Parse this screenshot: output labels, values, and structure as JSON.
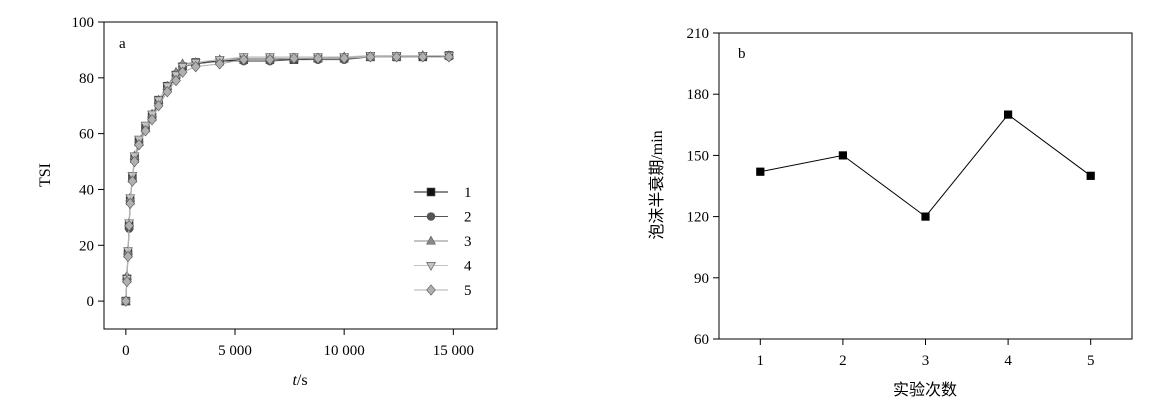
{
  "chart_data": [
    {
      "panel": "a",
      "type": "line",
      "xlabel_italic": "t",
      "xlabel_unit": "/s",
      "ylabel": "TSI",
      "xlim": [
        -1000,
        17000
      ],
      "ylim": [
        -10,
        100
      ],
      "x_ticks": [
        0,
        5000,
        10000,
        15000
      ],
      "x_tick_labels": [
        "0",
        "5 000",
        "10 000",
        "15 000"
      ],
      "y_ticks": [
        0,
        20,
        40,
        60,
        80,
        100
      ],
      "y_tick_labels": [
        "0",
        "20",
        "40",
        "60",
        "80",
        "100"
      ],
      "legend_position": "lower-right",
      "series": [
        {
          "name": "1",
          "marker": "square",
          "color": "#111111",
          "x": [
            0,
            50,
            100,
            150,
            200,
            300,
            400,
            600,
            900,
            1200,
            1500,
            1900,
            2300,
            2600,
            3200,
            4300,
            5400,
            6600,
            7700,
            8800,
            10000,
            11200,
            12400,
            13600,
            14800
          ],
          "y": [
            0,
            8,
            17,
            27,
            36,
            44,
            51,
            57,
            62,
            66,
            72,
            77,
            81,
            84,
            85.5,
            86,
            86.5,
            86.5,
            86.5,
            87,
            87,
            87.5,
            87.5,
            87.5,
            88
          ]
        },
        {
          "name": "2",
          "marker": "circle",
          "color": "#555555",
          "x": [
            0,
            50,
            100,
            150,
            200,
            300,
            400,
            600,
            900,
            1200,
            1500,
            1900,
            2300,
            2600,
            3200,
            4300,
            5400,
            6600,
            7700,
            8800,
            10000,
            11200,
            12400,
            13600,
            14800
          ],
          "y": [
            0,
            8,
            17,
            26,
            36,
            44,
            51,
            57,
            62,
            66,
            71,
            76,
            80,
            84,
            85,
            86,
            86,
            86,
            86.5,
            86.5,
            86.5,
            87.5,
            87.5,
            87.5,
            87.5
          ]
        },
        {
          "name": "3",
          "marker": "triangle-up",
          "color": "#8a8a8a",
          "x": [
            0,
            50,
            100,
            150,
            200,
            300,
            400,
            600,
            900,
            1200,
            1500,
            1900,
            2300,
            2600,
            3200,
            4300,
            5400,
            6600,
            7700,
            8800,
            10000,
            11200,
            12400,
            13600,
            14800
          ],
          "y": [
            0,
            9,
            18,
            28,
            37,
            44,
            52,
            57,
            62,
            67,
            72,
            77,
            82,
            85,
            85.5,
            86.5,
            87,
            87,
            87,
            87,
            87.5,
            87.5,
            87.5,
            88,
            88
          ]
        },
        {
          "name": "4",
          "marker": "triangle-down",
          "color": "#c4c4c4",
          "x": [
            0,
            50,
            100,
            150,
            200,
            300,
            400,
            600,
            900,
            1200,
            1500,
            1900,
            2300,
            2600,
            3200,
            4300,
            5400,
            6600,
            7700,
            8800,
            10000,
            11200,
            12400,
            13600,
            14800
          ],
          "y": [
            0,
            8,
            18,
            28,
            37,
            45,
            52,
            58,
            63,
            67,
            72,
            77,
            81,
            84,
            85.5,
            86.5,
            87.5,
            87.5,
            87.5,
            87.5,
            87.5,
            88,
            88,
            88,
            88
          ]
        },
        {
          "name": "5",
          "marker": "diamond",
          "color": "#b0b0b0",
          "x": [
            0,
            50,
            100,
            150,
            200,
            300,
            400,
            600,
            900,
            1200,
            1500,
            1900,
            2300,
            2600,
            3200,
            4300,
            5400,
            6600,
            7700,
            8800,
            10000,
            11200,
            12400,
            13600,
            14800
          ],
          "y": [
            0,
            7,
            16,
            27,
            35,
            43,
            50,
            56,
            61,
            65,
            70,
            75,
            79,
            82,
            84,
            85,
            86.5,
            86.5,
            87,
            87,
            87,
            87.5,
            87.5,
            87.5,
            87.5
          ]
        }
      ]
    },
    {
      "panel": "b",
      "type": "line",
      "xlabel": "实验次数",
      "ylabel": "泡沫半衰期/min",
      "xlim": [
        0.5,
        5.5
      ],
      "ylim": [
        60,
        210
      ],
      "x_ticks": [
        1,
        2,
        3,
        4,
        5
      ],
      "x_tick_labels": [
        "1",
        "2",
        "3",
        "4",
        "5"
      ],
      "y_ticks": [
        60,
        90,
        120,
        150,
        180,
        210
      ],
      "y_tick_labels": [
        "60",
        "90",
        "120",
        "150",
        "180",
        "210"
      ],
      "series": [
        {
          "marker": "square",
          "color": "#000000",
          "x": [
            1,
            2,
            3,
            4,
            5
          ],
          "y": [
            142,
            150,
            120,
            170,
            140
          ]
        }
      ]
    }
  ]
}
